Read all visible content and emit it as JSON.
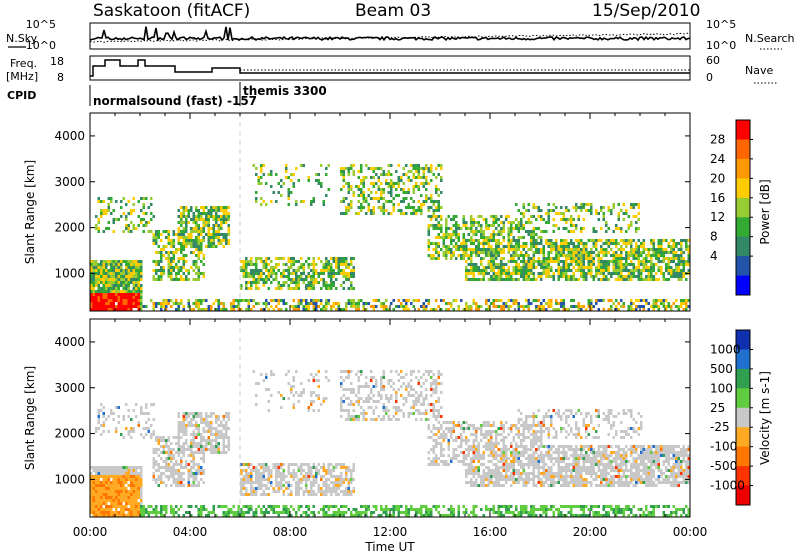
{
  "header": {
    "station": "Saskatoon (fitACF)",
    "beam": "Beam 03",
    "date": "15/Sep/2010"
  },
  "noise_panel": {
    "left_label": "N.Sky",
    "right_label": "N.Search",
    "left_ticks": [
      "10^5",
      "10^0"
    ],
    "right_ticks": [
      "10^5",
      "10^0"
    ]
  },
  "freq_panel": {
    "left_label_1": "Freq.",
    "left_label_2": "[MHz]",
    "right_label": "Nave",
    "left_ticks": [
      "18",
      "8"
    ],
    "right_ticks": [
      "60",
      "0"
    ],
    "cpid_label": "CPID",
    "cpid_1": "normalsound (fast) -157",
    "cpid_2": "themis 3300"
  },
  "chart_data": [
    {
      "type": "heatmap",
      "panel": "power",
      "ylabel": "Slant Range [km]",
      "yticks": [
        1000,
        2000,
        3000,
        4000
      ],
      "ylim": [
        180,
        4500
      ],
      "colorbar_label": "Power [dB]",
      "colorbar_ticks": [
        "28",
        "24",
        "20",
        "16",
        "12",
        "8",
        "4"
      ],
      "colorbar_colors": [
        "#ff0000",
        "#ff6600",
        "#ff9900",
        "#ffcc00",
        "#99cc33",
        "#33aa33",
        "#338866",
        "#2255aa",
        "#0000ff"
      ]
    },
    {
      "type": "heatmap",
      "panel": "velocity",
      "ylabel": "Slant Range [km]",
      "yticks": [
        1000,
        2000,
        3000,
        4000
      ],
      "ylim": [
        180,
        4500
      ],
      "colorbar_label": "Velocity [m s-1]",
      "colorbar_ticks": [
        "1000",
        "500",
        "100",
        "25",
        "-25",
        "-100",
        "-500",
        "-1000"
      ],
      "colorbar_colors": [
        "#1030b0",
        "#2070d0",
        "#30a050",
        "#60cc40",
        "#c8c8c8",
        "#ffaa22",
        "#ff7700",
        "#ff3300",
        "#ee0000"
      ]
    }
  ],
  "x_axis": {
    "ticks": [
      "00:00",
      "04:00",
      "08:00",
      "12:00",
      "16:00",
      "20:00",
      "00:00"
    ],
    "label": "Time UT"
  }
}
